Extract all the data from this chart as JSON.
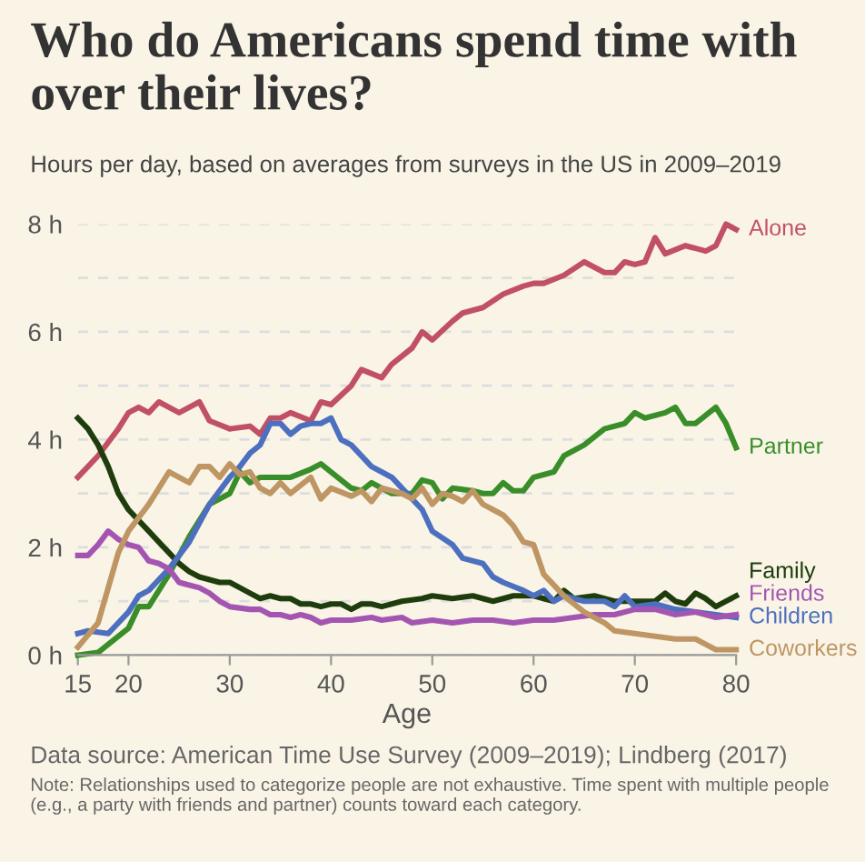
{
  "chart_data": {
    "type": "line",
    "title": "Who do Americans spend time with over their lives?",
    "subtitle": "Hours per day, based on averages from surveys in the US in 2009–2019",
    "xlabel": "Age",
    "xlim": [
      15,
      80
    ],
    "xticks": [
      15,
      20,
      30,
      40,
      50,
      60,
      70,
      80
    ],
    "ylim": [
      0,
      8
    ],
    "yticks": [
      {
        "value": 0,
        "label": "0 h"
      },
      {
        "value": 1,
        "label": null
      },
      {
        "value": 2,
        "label": "2 h"
      },
      {
        "value": 3,
        "label": null
      },
      {
        "value": 4,
        "label": "4 h"
      },
      {
        "value": 5,
        "label": null
      },
      {
        "value": 6,
        "label": "6 h"
      },
      {
        "value": 7,
        "label": null
      },
      {
        "value": 8,
        "label": "8 h"
      }
    ],
    "grid": "y",
    "legend": false,
    "marker": "none",
    "line_style": "solid",
    "series": [
      {
        "name": "Alone",
        "color": "#c15065",
        "x": [
          15,
          17,
          19,
          20,
          21,
          22,
          23,
          25,
          27,
          28,
          30,
          32,
          33,
          34,
          35,
          36,
          38,
          39,
          40,
          42,
          43,
          45,
          46,
          48,
          49,
          50,
          52,
          53,
          55,
          57,
          59,
          60,
          61,
          63,
          65,
          67,
          68,
          69,
          70,
          71,
          72,
          73,
          75,
          77,
          78,
          79,
          80
        ],
        "values": [
          3.3,
          3.7,
          4.2,
          4.5,
          4.6,
          4.5,
          4.7,
          4.5,
          4.7,
          4.35,
          4.2,
          4.25,
          4.1,
          4.4,
          4.4,
          4.5,
          4.35,
          4.7,
          4.65,
          5.0,
          5.3,
          5.15,
          5.4,
          5.7,
          6.0,
          5.85,
          6.2,
          6.35,
          6.45,
          6.7,
          6.85,
          6.9,
          6.9,
          7.05,
          7.3,
          7.1,
          7.1,
          7.3,
          7.25,
          7.3,
          7.75,
          7.45,
          7.6,
          7.5,
          7.6,
          8.0,
          7.9
        ]
      },
      {
        "name": "Partner",
        "color": "#3a8e2a",
        "x": [
          15,
          17,
          18,
          20,
          21,
          22,
          24,
          26,
          28,
          30,
          31,
          32,
          33,
          36,
          38,
          39,
          40,
          42,
          43,
          44,
          46,
          48,
          49,
          50,
          51,
          52,
          54,
          55,
          56,
          57,
          58,
          59,
          60,
          62,
          63,
          65,
          67,
          69,
          70,
          71,
          73,
          74,
          75,
          76,
          78,
          79,
          80
        ],
        "values": [
          0,
          0.05,
          0.2,
          0.5,
          0.9,
          0.9,
          1.5,
          2.2,
          2.8,
          3.0,
          3.4,
          3.2,
          3.3,
          3.3,
          3.45,
          3.55,
          3.4,
          3.1,
          3.05,
          3.2,
          3.0,
          3.0,
          3.25,
          3.2,
          2.9,
          3.1,
          3.05,
          3.0,
          3.0,
          3.2,
          3.05,
          3.05,
          3.3,
          3.4,
          3.7,
          3.9,
          4.2,
          4.3,
          4.5,
          4.4,
          4.5,
          4.6,
          4.3,
          4.3,
          4.6,
          4.3,
          3.85
        ]
      },
      {
        "name": "Family",
        "color": "#1f3d0c",
        "x": [
          15,
          16,
          17,
          18,
          19,
          20,
          21,
          22,
          23,
          24,
          25,
          26,
          27,
          28,
          29,
          30,
          31,
          32,
          33,
          34,
          35,
          36,
          37,
          38,
          39,
          40,
          41,
          42,
          43,
          44,
          45,
          47,
          49,
          50,
          52,
          54,
          56,
          58,
          60,
          62,
          63,
          64,
          66,
          68,
          70,
          72,
          73,
          74,
          75,
          76,
          77,
          78,
          80
        ],
        "values": [
          4.4,
          4.2,
          3.9,
          3.5,
          3.0,
          2.7,
          2.5,
          2.3,
          2.1,
          1.9,
          1.7,
          1.55,
          1.45,
          1.4,
          1.35,
          1.35,
          1.25,
          1.15,
          1.05,
          1.1,
          1.05,
          1.05,
          0.95,
          0.95,
          0.9,
          0.95,
          0.95,
          0.85,
          0.95,
          0.95,
          0.9,
          1.0,
          1.05,
          1.1,
          1.05,
          1.1,
          1.0,
          1.1,
          1.1,
          1.0,
          1.2,
          1.05,
          1.1,
          1.0,
          1.0,
          1.0,
          1.15,
          1.0,
          0.95,
          1.15,
          1.05,
          0.9,
          1.1
        ]
      },
      {
        "name": "Children",
        "color": "#4c6fbf",
        "x": [
          15,
          16,
          18,
          20,
          21,
          22,
          24,
          26,
          28,
          30,
          31,
          32,
          33,
          34,
          35,
          36,
          37,
          38,
          39,
          40,
          41,
          42,
          44,
          45,
          46,
          48,
          49,
          50,
          52,
          53,
          55,
          56,
          57,
          59,
          60,
          61,
          62,
          63,
          65,
          67,
          68,
          69,
          70,
          72,
          74,
          76,
          78,
          80
        ],
        "values": [
          0.4,
          0.45,
          0.4,
          0.8,
          1.1,
          1.2,
          1.6,
          2.1,
          2.8,
          3.3,
          3.5,
          3.75,
          3.9,
          4.3,
          4.3,
          4.1,
          4.25,
          4.3,
          4.3,
          4.4,
          4.0,
          3.9,
          3.5,
          3.4,
          3.3,
          2.9,
          2.7,
          2.3,
          2.05,
          1.8,
          1.7,
          1.45,
          1.35,
          1.2,
          1.1,
          1.2,
          1.0,
          1.1,
          1.0,
          1.0,
          0.9,
          1.1,
          0.9,
          0.95,
          0.85,
          0.8,
          0.75,
          0.7
        ]
      },
      {
        "name": "Friends",
        "color": "#a455b1",
        "x": [
          15,
          16,
          17,
          18,
          19,
          20,
          21,
          22,
          23,
          24,
          25,
          26,
          27,
          28,
          29,
          30,
          32,
          33,
          34,
          35,
          36,
          37,
          38,
          39,
          40,
          42,
          44,
          45,
          47,
          48,
          50,
          52,
          54,
          56,
          58,
          60,
          62,
          64,
          66,
          68,
          70,
          72,
          74,
          76,
          78,
          80
        ],
        "values": [
          1.85,
          1.85,
          2.05,
          2.3,
          2.15,
          2.05,
          2.0,
          1.75,
          1.7,
          1.6,
          1.35,
          1.3,
          1.25,
          1.15,
          1.0,
          0.9,
          0.85,
          0.85,
          0.75,
          0.75,
          0.7,
          0.75,
          0.7,
          0.6,
          0.65,
          0.65,
          0.7,
          0.65,
          0.7,
          0.6,
          0.65,
          0.6,
          0.65,
          0.65,
          0.6,
          0.65,
          0.65,
          0.7,
          0.75,
          0.75,
          0.85,
          0.85,
          0.75,
          0.8,
          0.7,
          0.75
        ]
      },
      {
        "name": "Coworkers",
        "color": "#be9563",
        "x": [
          15,
          17,
          19,
          20,
          22,
          24,
          26,
          27,
          28,
          29,
          30,
          31,
          32,
          33,
          34,
          35,
          36,
          38,
          39,
          40,
          42,
          43,
          44,
          45,
          47,
          48,
          49,
          50,
          51,
          52,
          53,
          54,
          55,
          56,
          57,
          58,
          59,
          60,
          61,
          62,
          63,
          65,
          67,
          68,
          70,
          72,
          74,
          76,
          77,
          78,
          80
        ],
        "values": [
          0.15,
          0.6,
          1.9,
          2.3,
          2.8,
          3.4,
          3.2,
          3.5,
          3.5,
          3.3,
          3.55,
          3.35,
          3.4,
          3.1,
          3.0,
          3.2,
          3.0,
          3.3,
          2.9,
          3.1,
          2.95,
          3.05,
          2.85,
          3.1,
          3.0,
          2.9,
          3.1,
          2.8,
          3.0,
          2.95,
          2.85,
          3.05,
          2.8,
          2.7,
          2.6,
          2.4,
          2.1,
          2.05,
          1.5,
          1.3,
          1.1,
          0.8,
          0.6,
          0.45,
          0.4,
          0.35,
          0.3,
          0.3,
          0.2,
          0.1,
          0.1
        ]
      }
    ],
    "annotations": [
      "Data source: American Time Use Survey (2009–2019); Lindberg (2017)",
      "Note: Relationships used to categorize people are not exhaustive. Time spent with multiple people (e.g., a party with friends and partner) counts toward each category."
    ]
  }
}
